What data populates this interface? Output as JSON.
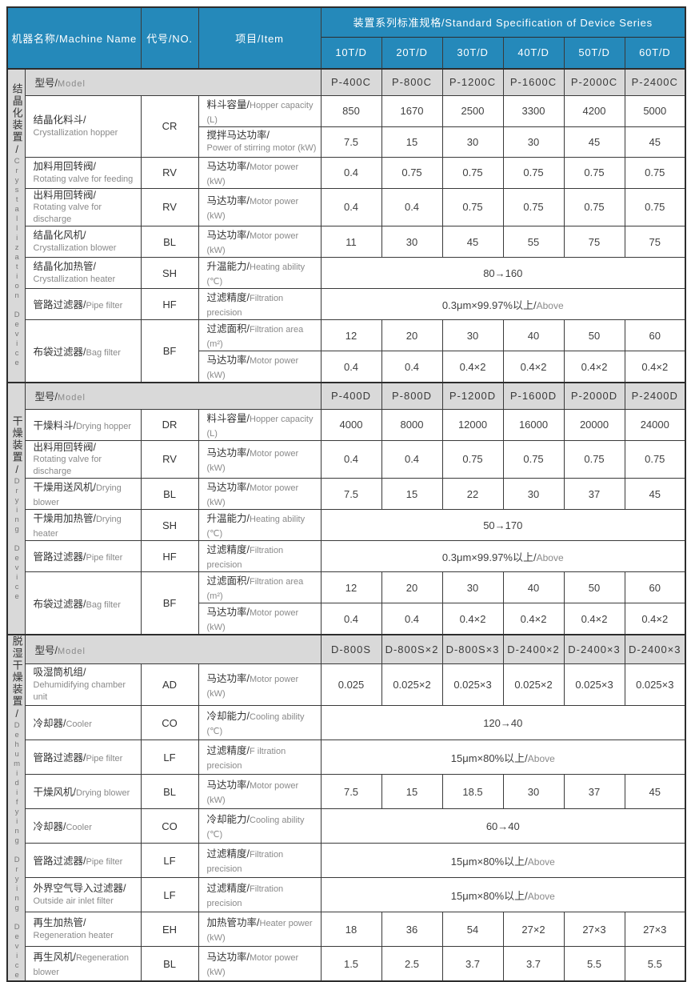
{
  "header": {
    "machine_name": "机器名称/Machine Name",
    "no": "代号/NO.",
    "item": "项目/Item",
    "series_title": "装置系列标准规格/Standard Specification of Device Series",
    "series_columns": [
      "10T/D",
      "20T/D",
      "30T/D",
      "40T/D",
      "50T/D",
      "60T/D"
    ]
  },
  "model_label_cn": "型号/",
  "model_label_en": "Model",
  "sections": [
    {
      "label_cn": "结晶化装置/",
      "label_en": "Crystallization Device",
      "models": [
        "P-400C",
        "P-800C",
        "P-1200C",
        "P-1600C",
        "P-2000C",
        "P-2400C"
      ],
      "rows": [
        {
          "machine": {
            "cn": "结晶化料斗/",
            "en": "Crystallization hopper",
            "two": true
          },
          "no": "CR",
          "items": [
            {
              "item": {
                "cn": "料斗容量/",
                "en": "Hopper capacity (L)"
              },
              "values": [
                "850",
                "1670",
                "2500",
                "3300",
                "4200",
                "5000"
              ]
            },
            {
              "item": {
                "cn": "搅拌马达功率/",
                "en": "Power of stirring motor (kW)",
                "two": true
              },
              "values": [
                "7.5",
                "15",
                "30",
                "30",
                "45",
                "45"
              ]
            }
          ]
        },
        {
          "machine": {
            "cn": "加料用回转阀/",
            "en": "Rotating valve for feeding",
            "two": true
          },
          "no": "RV",
          "items": [
            {
              "item": {
                "cn": "马达功率/",
                "en": "Motor power (kW)"
              },
              "values": [
                "0.4",
                "0.75",
                "0.75",
                "0.75",
                "0.75",
                "0.75"
              ]
            }
          ]
        },
        {
          "machine": {
            "cn": "出料用回转阀/",
            "en": "Rotating valve for discharge",
            "two": true
          },
          "no": "RV",
          "items": [
            {
              "item": {
                "cn": "马达功率/",
                "en": "Motor power (kW)"
              },
              "values": [
                "0.4",
                "0.4",
                "0.75",
                "0.75",
                "0.75",
                "0.75"
              ]
            }
          ]
        },
        {
          "machine": {
            "cn": "结晶化风机/",
            "en": "Crystallization blower",
            "two": true
          },
          "no": "BL",
          "items": [
            {
              "item": {
                "cn": "马达功率/",
                "en": "Motor power (kW)"
              },
              "values": [
                "11",
                "30",
                "45",
                "55",
                "75",
                "75"
              ]
            }
          ]
        },
        {
          "machine": {
            "cn": "结晶化加热管/",
            "en": "Crystallization heater",
            "two": true
          },
          "no": "SH",
          "items": [
            {
              "item": {
                "cn": "升温能力/",
                "en": "Heating ability (℃)"
              },
              "span": "80→160"
            }
          ]
        },
        {
          "machine": {
            "cn": "管路过滤器/",
            "en": "Pipe filter"
          },
          "no": "HF",
          "items": [
            {
              "item": {
                "cn": "过滤精度/",
                "en": "Filtration precision"
              },
              "span": "0.3μm×99.97%以上/",
              "span_en": "Above"
            }
          ]
        },
        {
          "machine": {
            "cn": "布袋过滤器/",
            "en": "Bag filter"
          },
          "no": "BF",
          "items": [
            {
              "item": {
                "cn": "过滤面积/",
                "en": "Filtration area (m²)"
              },
              "values": [
                "12",
                "20",
                "30",
                "40",
                "50",
                "60"
              ]
            },
            {
              "item": {
                "cn": "马达功率/",
                "en": "Motor power (kW)"
              },
              "values": [
                "0.4",
                "0.4",
                "0.4×2",
                "0.4×2",
                "0.4×2",
                "0.4×2"
              ]
            }
          ]
        }
      ]
    },
    {
      "label_cn": "干燥装置/",
      "label_en": "Drying Device",
      "models": [
        "P-400D",
        "P-800D",
        "P-1200D",
        "P-1600D",
        "P-2000D",
        "P-2400D"
      ],
      "rows": [
        {
          "machine": {
            "cn": "干燥料斗/",
            "en": "Drying hopper"
          },
          "no": "DR",
          "items": [
            {
              "item": {
                "cn": "料斗容量/",
                "en": "Hopper capacity (L)"
              },
              "values": [
                "4000",
                "8000",
                "12000",
                "16000",
                "20000",
                "24000"
              ]
            }
          ]
        },
        {
          "machine": {
            "cn": "出料用回转阀/",
            "en": "Rotating valve for discharge",
            "two": true
          },
          "no": "RV",
          "items": [
            {
              "item": {
                "cn": "马达功率/",
                "en": "Motor power (kW)"
              },
              "values": [
                "0.4",
                "0.4",
                "0.75",
                "0.75",
                "0.75",
                "0.75"
              ]
            }
          ]
        },
        {
          "machine": {
            "cn": "干燥用送风机/",
            "en": "Drying blower"
          },
          "no": "BL",
          "items": [
            {
              "item": {
                "cn": "马达功率/",
                "en": "Motor power (kW)"
              },
              "values": [
                "7.5",
                "15",
                "22",
                "30",
                "37",
                "45"
              ]
            }
          ]
        },
        {
          "machine": {
            "cn": "干燥用加热管/",
            "en": "Drying heater"
          },
          "no": "SH",
          "items": [
            {
              "item": {
                "cn": "升温能力/",
                "en": "Heating ability (℃)"
              },
              "span": "50→170"
            }
          ]
        },
        {
          "machine": {
            "cn": "管路过滤器/",
            "en": "Pipe filter"
          },
          "no": "HF",
          "items": [
            {
              "item": {
                "cn": "过滤精度/",
                "en": "Filtration precision"
              },
              "span": "0.3μm×99.97%以上/",
              "span_en": "Above"
            }
          ]
        },
        {
          "machine": {
            "cn": "布袋过滤器/",
            "en": "Bag filter"
          },
          "no": "BF",
          "items": [
            {
              "item": {
                "cn": "过滤面积/",
                "en": "Filtration area (m²)"
              },
              "values": [
                "12",
                "20",
                "30",
                "40",
                "50",
                "60"
              ]
            },
            {
              "item": {
                "cn": "马达功率/",
                "en": "Motor power (kW)"
              },
              "values": [
                "0.4",
                "0.4",
                "0.4×2",
                "0.4×2",
                "0.4×2",
                "0.4×2"
              ]
            }
          ]
        }
      ]
    },
    {
      "label_cn": "脱湿干燥装置/",
      "label_en": "Dehumidifying Drying Device",
      "models": [
        "D-800S",
        "D-800S×2",
        "D-800S×3",
        "D-2400×2",
        "D-2400×3",
        "D-2400×3"
      ],
      "rows": [
        {
          "machine": {
            "cn": "吸湿筒机组/",
            "en": "Dehumidifying chamber unit",
            "two": true
          },
          "no": "AD",
          "items": [
            {
              "item": {
                "cn": "马达功率/",
                "en": "Motor power (kW)"
              },
              "values": [
                "0.025",
                "0.025×2",
                "0.025×3",
                "0.025×2",
                "0.025×3",
                "0.025×3"
              ]
            }
          ]
        },
        {
          "machine": {
            "cn": "冷却器/",
            "en": "Cooler"
          },
          "no": "CO",
          "items": [
            {
              "item": {
                "cn": "冷却能力/",
                "en": "Cooling ability (℃)"
              },
              "span": "120→40"
            }
          ]
        },
        {
          "machine": {
            "cn": "管路过滤器/",
            "en": "Pipe filter"
          },
          "no": "LF",
          "items": [
            {
              "item": {
                "cn": "过滤精度/",
                "en": "F iltration precision"
              },
              "span": "15μm×80%以上/",
              "span_en": "Above"
            }
          ]
        },
        {
          "machine": {
            "cn": "干燥风机/",
            "en": "Drying blower"
          },
          "no": "BL",
          "items": [
            {
              "item": {
                "cn": "马达功率/",
                "en": "Motor power (kW)"
              },
              "values": [
                "7.5",
                "15",
                "18.5",
                "30",
                "37",
                "45"
              ]
            }
          ]
        },
        {
          "machine": {
            "cn": "冷却器/",
            "en": "Cooler"
          },
          "no": "CO",
          "items": [
            {
              "item": {
                "cn": "冷却能力/",
                "en": "Cooling ability (℃)"
              },
              "span": "60→40"
            }
          ]
        },
        {
          "machine": {
            "cn": "管路过滤器/",
            "en": "Pipe filter"
          },
          "no": "LF",
          "items": [
            {
              "item": {
                "cn": "过滤精度/",
                "en": "Filtration precision"
              },
              "span": "15μm×80%以上/",
              "span_en": "Above"
            }
          ]
        },
        {
          "machine": {
            "cn": "外界空气导入过滤器/",
            "en": "Outside air inlet filter",
            "two": true
          },
          "no": "LF",
          "items": [
            {
              "item": {
                "cn": "过滤精度/",
                "en": "Filtration precision"
              },
              "span": "15μm×80%以上/",
              "span_en": "Above"
            }
          ]
        },
        {
          "machine": {
            "cn": "再生加热管/",
            "en": "Regeneration heater",
            "two": true
          },
          "no": "EH",
          "items": [
            {
              "item": {
                "cn": "加热管功率/",
                "en": "Heater power (kW)"
              },
              "values": [
                "18",
                "36",
                "54",
                "27×2",
                "27×3",
                "27×3"
              ]
            }
          ]
        },
        {
          "machine": {
            "cn": "再生风机/",
            "en": "Regeneration blower"
          },
          "no": "BL",
          "items": [
            {
              "item": {
                "cn": "马达功率/",
                "en": "Motor power (kW)"
              },
              "values": [
                "1.5",
                "2.5",
                "3.7",
                "3.7",
                "5.5",
                "5.5"
              ]
            }
          ]
        }
      ]
    }
  ],
  "colors": {
    "header_blue": "#2589ba",
    "row_gray": "#d9d9d9",
    "border_dark": "#3a3a3a"
  }
}
